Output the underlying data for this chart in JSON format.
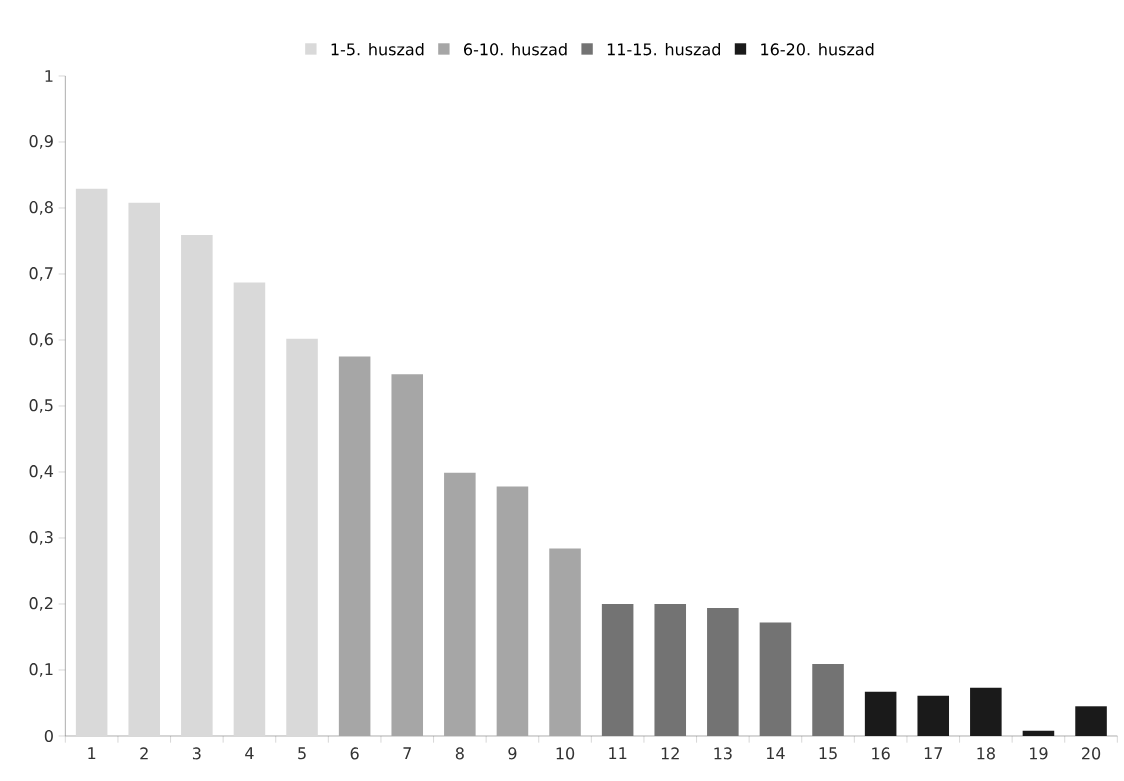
{
  "chart_data": {
    "type": "bar",
    "categories": [
      "1",
      "2",
      "3",
      "4",
      "5",
      "6",
      "7",
      "8",
      "9",
      "10",
      "11",
      "12",
      "13",
      "14",
      "15",
      "16",
      "17",
      "18",
      "19",
      "20"
    ],
    "series": [
      {
        "name": "1-5. huszad",
        "color": "#d9d9d9",
        "values": [
          0.829,
          0.808,
          0.759,
          0.687,
          0.602,
          null,
          null,
          null,
          null,
          null,
          null,
          null,
          null,
          null,
          null,
          null,
          null,
          null,
          null,
          null
        ]
      },
      {
        "name": "6-10. huszad",
        "color": "#a6a6a6",
        "values": [
          null,
          null,
          null,
          null,
          null,
          0.575,
          0.548,
          0.399,
          0.378,
          0.284,
          null,
          null,
          null,
          null,
          null,
          null,
          null,
          null,
          null,
          null
        ]
      },
      {
        "name": "11-15. huszad",
        "color": "#737373",
        "values": [
          null,
          null,
          null,
          null,
          null,
          null,
          null,
          null,
          null,
          null,
          0.2,
          0.2,
          0.194,
          0.172,
          0.109,
          null,
          null,
          null,
          null,
          null
        ]
      },
      {
        "name": "16-20. huszad",
        "color": "#1a1a1a",
        "values": [
          null,
          null,
          null,
          null,
          null,
          null,
          null,
          null,
          null,
          null,
          null,
          null,
          null,
          null,
          null,
          0.067,
          0.061,
          0.073,
          0.008,
          0.045
        ]
      }
    ],
    "ylim": [
      0,
      1
    ],
    "yticks": [
      0,
      {
        "value": 0.1,
        "label": "0,1"
      },
      {
        "value": 0.2,
        "label": "0,2"
      },
      {
        "value": 0.3,
        "label": "0,3"
      },
      {
        "value": 0.4,
        "label": "0,4"
      },
      {
        "value": 0.5,
        "label": "0,5"
      },
      {
        "value": 0.6,
        "label": "0,6"
      },
      {
        "value": 0.7,
        "label": "0,7"
      },
      {
        "value": 0.8,
        "label": "0,8"
      },
      {
        "value": 0.9,
        "label": "0,9"
      },
      1
    ],
    "grid": false,
    "legend": "top"
  }
}
